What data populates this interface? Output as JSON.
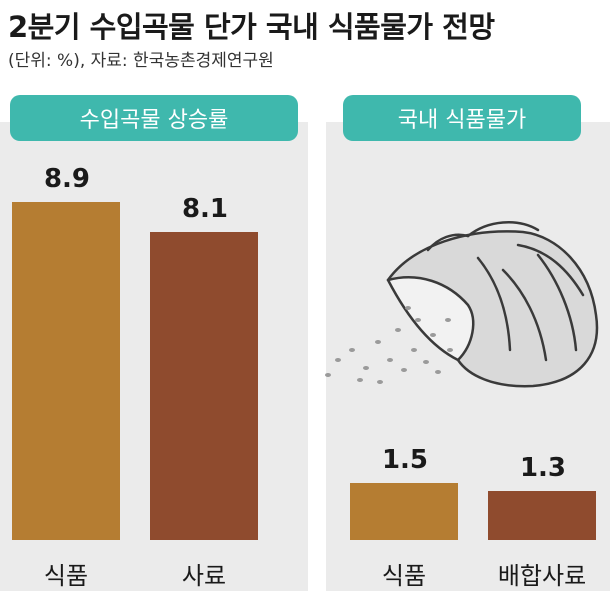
{
  "title": "2분기 수입곡물 단가 국내 식품물가 전망",
  "subtitle": "(단위: %), 자료: 한국농촌경제연구원",
  "colors": {
    "accent": "#3fb8ad",
    "food": "#b57d32",
    "feed": "#8f4b2e",
    "panel": "#ebebeb"
  },
  "illustration": "grain-sack-icon",
  "chart_data": [
    {
      "type": "bar",
      "title": "수입곡물 상승률",
      "categories": [
        "식품",
        "사료"
      ],
      "values": [
        8.9,
        8.1
      ],
      "value_labels": [
        "8.9",
        "8.1"
      ],
      "ylim": [
        0,
        10
      ]
    },
    {
      "type": "bar",
      "title": "국내 식품물가",
      "categories": [
        "식품",
        "배합사료"
      ],
      "values": [
        1.5,
        1.3
      ],
      "value_labels": [
        "1.5",
        "1.3"
      ],
      "ylim": [
        0,
        10
      ]
    }
  ]
}
